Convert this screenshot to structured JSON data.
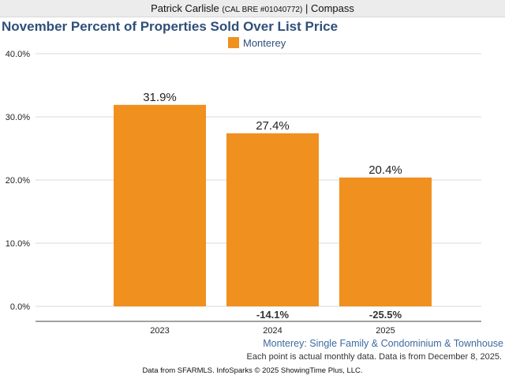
{
  "header": {
    "name": "Patrick Carlisle",
    "license": "(CAL BRE #01040772)",
    "separator": "|",
    "company": "Compass"
  },
  "footer": {
    "subcaption": "Monterey: Single Family & Condominium & Townhouse",
    "note": "Each point is actual monthly data. Data is from December 8, 2025.",
    "credit": "Data from SFARMLS. InfoSparks © 2025 ShowingTime Plus, LLC."
  },
  "colors": {
    "bar": "#f0901f",
    "title": "#2f4f79",
    "grid": "#d9d9d9"
  },
  "chart_data": {
    "type": "bar",
    "title": "November Percent of Properties Sold Over List Price",
    "categories": [
      "2023",
      "2024",
      "2025"
    ],
    "series": [
      {
        "name": "Monterey",
        "values": [
          31.9,
          27.4,
          20.4
        ],
        "value_labels": [
          "31.9%",
          "27.4%",
          "20.4%"
        ]
      }
    ],
    "yoy_change_labels": [
      "",
      "-14.1%",
      "-25.5%"
    ],
    "ylim": [
      0,
      40
    ],
    "yticks": [
      0,
      10,
      20,
      30,
      40
    ],
    "ytick_labels": [
      "0.0%",
      "10.0%",
      "20.0%",
      "30.0%",
      "40.0%"
    ],
    "xlabel": "",
    "ylabel": "",
    "grid": true,
    "legend": "top-center"
  }
}
